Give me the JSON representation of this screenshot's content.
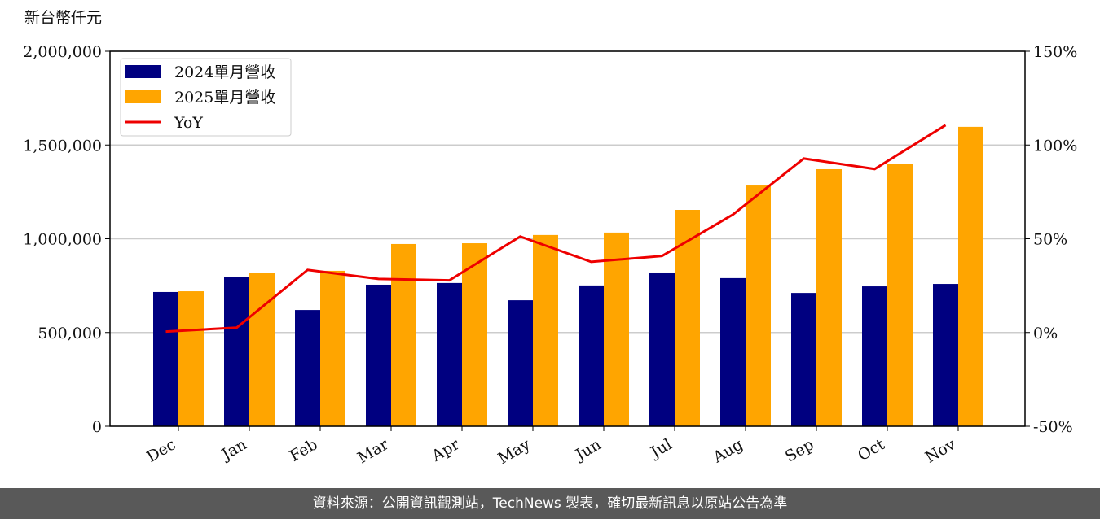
{
  "chart_data": {
    "type": "bar_line",
    "y_label": "新台幣仟元",
    "categories": [
      "Dec",
      "Jan",
      "Feb",
      "Mar",
      "Apr",
      "May",
      "Jun",
      "Jul",
      "Aug",
      "Sep",
      "Oct",
      "Nov"
    ],
    "series": [
      {
        "name": "2024單月營收",
        "color": "#000080",
        "type": "bar",
        "values": [
          716000,
          794000,
          620000,
          755000,
          764000,
          672000,
          751000,
          820000,
          790000,
          711000,
          746000,
          759000
        ]
      },
      {
        "name": "2025單月營收",
        "color": "#ffa500",
        "type": "bar",
        "values": [
          720000,
          816000,
          829000,
          972000,
          976000,
          1020000,
          1033000,
          1154000,
          1284000,
          1371000,
          1397000,
          1597000
        ]
      },
      {
        "name": "YoY",
        "color": "#ee0000",
        "type": "line",
        "axis": "y2",
        "values": [
          0.5,
          2.6,
          33.4,
          28.6,
          27.8,
          51.2,
          37.7,
          40.8,
          62.9,
          92.8,
          87.2,
          110.6
        ]
      }
    ],
    "ylim": [
      0,
      2000000
    ],
    "yticks": [
      0,
      {
        "value": 500000,
        "label": "500,000"
      },
      {
        "value": 1000000,
        "label": "1,000,000"
      },
      {
        "value": 1500000,
        "label": "1,500,000"
      },
      {
        "value": 2000000,
        "label": "2,000,000"
      }
    ],
    "y2lim": [
      -50,
      150
    ],
    "y2ticks": [
      {
        "value": -50,
        "label": "-50%"
      },
      {
        "value": 0,
        "label": "0%"
      },
      {
        "value": 50,
        "label": "50%"
      },
      {
        "value": 100,
        "label": "100%"
      },
      {
        "value": 150,
        "label": "150%"
      }
    ],
    "grid": true,
    "legend": "upper left"
  },
  "footer": "資料來源：公開資訊觀測站，TechNews 製表，確切最新訊息以原站公告為準"
}
